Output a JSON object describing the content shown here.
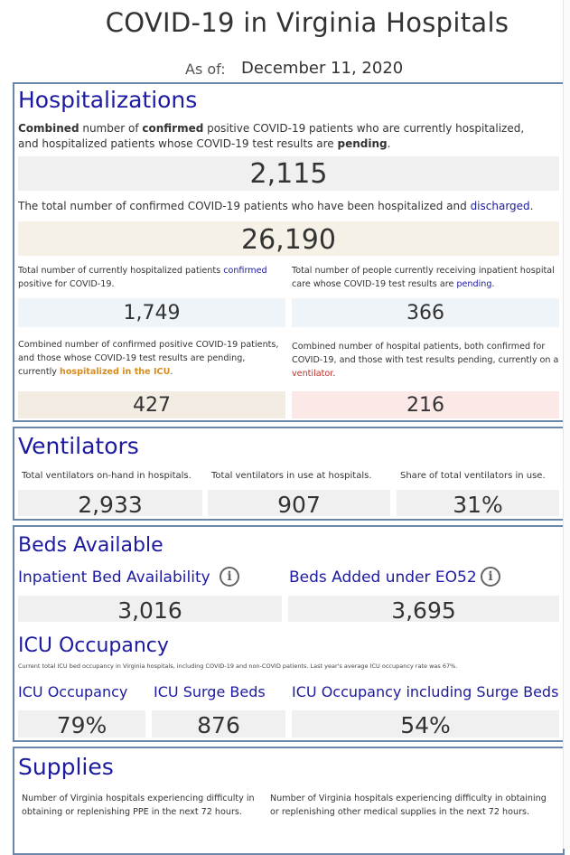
{
  "header": {
    "title": "COVID-19 in Virginia Hospitals",
    "as_of_label": "As of:",
    "as_of_date": "December 11, 2020"
  },
  "hospitalizations": {
    "heading": "Hospitalizations",
    "combined_desc": {
      "p1": "Combined",
      "p2": " number of ",
      "p3": "confirmed",
      "p4": " positive COVID-19 patients who are currently hospitalized, and hospitalized patients whose COVID-19 test results are ",
      "p5": "pending",
      "p6": "."
    },
    "combined_value": "2,115",
    "discharged_desc": {
      "p1": "The total number of confirmed COVID-19 patients who have been hospitalized and ",
      "p2": "discharged",
      "p3": "."
    },
    "discharged_value": "26,190",
    "confirmed_desc": {
      "p1": "Total number of currently hospitalized patients ",
      "p2": "confirmed",
      "p3": " positive for COVID-19."
    },
    "confirmed_value": "1,749",
    "pending_desc": {
      "p1": "Total number of people currently receiving inpatient hospital care whose COVID-19 test results are ",
      "p2": "pending",
      "p3": "."
    },
    "pending_value": "366",
    "icu_desc": {
      "p1": "Combined number of confirmed positive COVID-19 patients, and those whose COVID-19 test results are pending, currently ",
      "p2": "hospitalized in the ICU",
      "p3": "."
    },
    "icu_value": "427",
    "vent_desc": {
      "p1": "Combined number of hospital patients, both confirmed for COVID-19, and those with test results pending, currently on a ",
      "p2": "ventilator",
      "p3": "."
    },
    "vent_value": "216"
  },
  "ventilators": {
    "heading": "Ventilators",
    "onhand_label": "Total ventilators on-hand in hospitals.",
    "onhand_value": "2,933",
    "inuse_label": "Total ventilators in use at hospitals.",
    "inuse_value": "907",
    "share_label": "Share of total ventilators in use.",
    "share_value": "31%"
  },
  "beds": {
    "heading": "Beds Available",
    "inpatient_label": "Inpatient Bed Availability",
    "inpatient_value": "3,016",
    "added_label": "Beds Added under EO52",
    "added_value": "3,695",
    "info_glyph": "i",
    "icu_heading": "ICU Occupancy",
    "icu_note": "Current total ICU bed occupancy in Virginia hospitals, including COVID-19 and non-COVID patients. Last year's average ICU occupancy rate was 67%.",
    "icu_occ_label": "ICU Occupancy",
    "icu_occ_value": "79%",
    "surge_label": "ICU Surge Beds",
    "surge_value": "876",
    "icu_incl_label": "ICU Occupancy including Surge Beds",
    "icu_incl_value": "54%"
  },
  "supplies": {
    "heading": "Supplies",
    "ppe_desc": "Number of Virginia hospitals experiencing difficulty in obtaining or replenishing PPE in the next 72 hours.",
    "other_desc": "Number of Virginia hospitals experiencing difficulty in obtaining or replenishing other medical supplies in the next 72 hours."
  },
  "colors": {
    "heading_blue": "#1c1aa0",
    "panel_border": "#6a86a8",
    "icu_orange": "#d98c1e",
    "vent_red": "#c0302a"
  },
  "icons": {
    "info": "info-circle-icon"
  }
}
